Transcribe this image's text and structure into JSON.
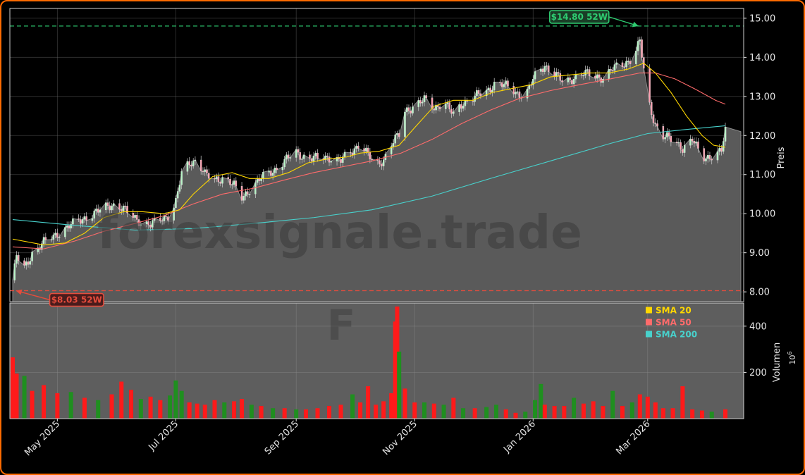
{
  "chart_data": {
    "type": "candlestick",
    "watermark": "forexsignale.trade",
    "ticker_watermark": "F",
    "price_axis": {
      "label": "Preis",
      "ylim": [
        7.75,
        15.25
      ],
      "ticks": [
        8.0,
        9.0,
        10.0,
        11.0,
        12.0,
        13.0,
        14.0,
        15.0
      ],
      "tick_labels": [
        "8.00",
        "9.00",
        "10.00",
        "11.00",
        "12.00",
        "13.00",
        "14.00",
        "15.00"
      ]
    },
    "volume_axis": {
      "label": "Volumen",
      "multiplier": "10^6",
      "ylim": [
        0,
        500
      ],
      "ticks": [
        200,
        400
      ],
      "tick_labels": [
        "200",
        "400"
      ]
    },
    "x_axis": {
      "start": "2025-04-08",
      "end": "2026-04-10",
      "ticks": [
        "2025-05-01",
        "2025-07-01",
        "2025-09-01",
        "2025-11-01",
        "2026-01-01",
        "2026-03-01"
      ],
      "tick_labels": [
        "May 2025",
        "Jul 2025",
        "Sep 2025",
        "Nov 2025",
        "Jan 2026",
        "Mar 2026"
      ]
    },
    "high_52w": {
      "date": "2026-02-25",
      "value": 14.8,
      "label": "$14.80 52W",
      "color": "#2ecc71"
    },
    "low_52w": {
      "date": "2025-04-09",
      "value": 8.03,
      "label": "$8.03 52W",
      "color": "#e74c3c"
    },
    "legend": [
      {
        "name": "SMA 20",
        "color": "#ffd700"
      },
      {
        "name": "SMA 50",
        "color": "#ff6b6b"
      },
      {
        "name": "SMA 200",
        "color": "#48d1cc"
      }
    ],
    "close_series": [
      [
        "2025-04-08",
        8.3
      ],
      [
        "2025-04-10",
        8.9
      ],
      [
        "2025-04-14",
        8.6
      ],
      [
        "2025-04-18",
        9.0
      ],
      [
        "2025-04-24",
        9.25
      ],
      [
        "2025-05-01",
        9.5
      ],
      [
        "2025-05-08",
        9.7
      ],
      [
        "2025-05-15",
        9.9
      ],
      [
        "2025-05-22",
        10.05
      ],
      [
        "2025-05-29",
        10.25
      ],
      [
        "2025-06-03",
        10.15
      ],
      [
        "2025-06-08",
        9.95
      ],
      [
        "2025-06-13",
        9.8
      ],
      [
        "2025-06-18",
        9.7
      ],
      [
        "2025-06-23",
        9.85
      ],
      [
        "2025-06-28",
        10.0
      ],
      [
        "2025-07-01",
        10.3
      ],
      [
        "2025-07-04",
        11.0
      ],
      [
        "2025-07-08",
        11.3
      ],
      [
        "2025-07-12",
        11.4
      ],
      [
        "2025-07-16",
        11.0
      ],
      [
        "2025-07-21",
        10.85
      ],
      [
        "2025-07-26",
        10.95
      ],
      [
        "2025-07-31",
        10.7
      ],
      [
        "2025-08-04",
        10.4
      ],
      [
        "2025-08-09",
        10.7
      ],
      [
        "2025-08-14",
        10.9
      ],
      [
        "2025-08-20",
        11.1
      ],
      [
        "2025-08-26",
        11.35
      ],
      [
        "2025-09-01",
        11.55
      ],
      [
        "2025-09-06",
        11.45
      ],
      [
        "2025-09-12",
        11.4
      ],
      [
        "2025-09-18",
        11.45
      ],
      [
        "2025-09-24",
        11.35
      ],
      [
        "2025-09-30",
        11.6
      ],
      [
        "2025-10-04",
        11.85
      ],
      [
        "2025-10-08",
        11.5
      ],
      [
        "2025-10-12",
        11.2
      ],
      [
        "2025-10-16",
        11.4
      ],
      [
        "2025-10-20",
        11.8
      ],
      [
        "2025-10-24",
        12.0
      ],
      [
        "2025-10-27",
        12.6
      ],
      [
        "2025-11-01",
        12.8
      ],
      [
        "2025-11-06",
        12.9
      ],
      [
        "2025-11-11",
        12.7
      ],
      [
        "2025-11-16",
        12.9
      ],
      [
        "2025-11-21",
        12.5
      ],
      [
        "2025-11-26",
        12.85
      ],
      [
        "2025-12-02",
        13.0
      ],
      [
        "2025-12-08",
        13.1
      ],
      [
        "2025-12-13",
        13.4
      ],
      [
        "2025-12-18",
        13.25
      ],
      [
        "2025-12-23",
        13.1
      ],
      [
        "2025-12-28",
        13.05
      ],
      [
        "2026-01-02",
        13.5
      ],
      [
        "2026-01-07",
        13.8
      ],
      [
        "2026-01-12",
        13.6
      ],
      [
        "2026-01-17",
        13.3
      ],
      [
        "2026-01-22",
        13.5
      ],
      [
        "2026-01-27",
        13.6
      ],
      [
        "2026-02-01",
        13.5
      ],
      [
        "2026-02-06",
        13.5
      ],
      [
        "2026-02-11",
        13.7
      ],
      [
        "2026-02-16",
        13.8
      ],
      [
        "2026-02-21",
        14.0
      ],
      [
        "2026-02-25",
        14.4
      ],
      [
        "2026-03-01",
        12.9
      ],
      [
        "2026-03-05",
        12.3
      ],
      [
        "2026-03-09",
        12.0
      ],
      [
        "2026-03-14",
        11.85
      ],
      [
        "2026-03-19",
        11.7
      ],
      [
        "2026-03-24",
        11.9
      ],
      [
        "2026-03-29",
        11.4
      ],
      [
        "2026-04-03",
        11.5
      ],
      [
        "2026-04-08",
        11.6
      ],
      [
        "2026-04-10",
        12.1
      ]
    ],
    "sma20_series": [
      [
        "2025-04-08",
        9.35
      ],
      [
        "2025-04-24",
        9.2
      ],
      [
        "2025-05-05",
        9.25
      ],
      [
        "2025-05-15",
        9.5
      ],
      [
        "2025-05-25",
        9.9
      ],
      [
        "2025-06-04",
        10.05
      ],
      [
        "2025-06-14",
        10.05
      ],
      [
        "2025-06-25",
        10.0
      ],
      [
        "2025-07-03",
        10.1
      ],
      [
        "2025-07-10",
        10.5
      ],
      [
        "2025-07-20",
        10.95
      ],
      [
        "2025-07-30",
        11.05
      ],
      [
        "2025-08-08",
        10.9
      ],
      [
        "2025-08-18",
        10.9
      ],
      [
        "2025-08-28",
        11.05
      ],
      [
        "2025-09-07",
        11.3
      ],
      [
        "2025-09-17",
        11.4
      ],
      [
        "2025-09-27",
        11.45
      ],
      [
        "2025-10-04",
        11.55
      ],
      [
        "2025-10-14",
        11.6
      ],
      [
        "2025-10-24",
        11.75
      ],
      [
        "2025-11-01",
        12.2
      ],
      [
        "2025-11-11",
        12.75
      ],
      [
        "2025-11-21",
        12.9
      ],
      [
        "2025-12-01",
        12.9
      ],
      [
        "2025-12-11",
        13.1
      ],
      [
        "2025-12-21",
        13.2
      ],
      [
        "2025-12-31",
        13.3
      ],
      [
        "2026-01-10",
        13.5
      ],
      [
        "2026-01-20",
        13.55
      ],
      [
        "2026-01-30",
        13.6
      ],
      [
        "2026-02-09",
        13.6
      ],
      [
        "2026-02-19",
        13.7
      ],
      [
        "2026-02-27",
        13.85
      ],
      [
        "2026-03-05",
        13.6
      ],
      [
        "2026-03-13",
        13.1
      ],
      [
        "2026-03-21",
        12.5
      ],
      [
        "2026-03-29",
        12.0
      ],
      [
        "2026-04-04",
        11.75
      ],
      [
        "2026-04-10",
        11.7
      ]
    ],
    "sma50_series": [
      [
        "2025-04-08",
        9.15
      ],
      [
        "2025-04-24",
        9.1
      ],
      [
        "2025-05-10",
        9.3
      ],
      [
        "2025-05-25",
        9.55
      ],
      [
        "2025-06-10",
        9.75
      ],
      [
        "2025-06-25",
        9.95
      ],
      [
        "2025-07-10",
        10.25
      ],
      [
        "2025-07-25",
        10.5
      ],
      [
        "2025-08-10",
        10.65
      ],
      [
        "2025-08-25",
        10.85
      ],
      [
        "2025-09-10",
        11.05
      ],
      [
        "2025-09-25",
        11.2
      ],
      [
        "2025-10-10",
        11.35
      ],
      [
        "2025-10-25",
        11.55
      ],
      [
        "2025-11-10",
        11.9
      ],
      [
        "2025-11-25",
        12.3
      ],
      [
        "2025-12-10",
        12.65
      ],
      [
        "2025-12-25",
        12.95
      ],
      [
        "2026-01-10",
        13.15
      ],
      [
        "2026-01-25",
        13.3
      ],
      [
        "2026-02-10",
        13.45
      ],
      [
        "2026-02-25",
        13.6
      ],
      [
        "2026-03-05",
        13.6
      ],
      [
        "2026-03-15",
        13.45
      ],
      [
        "2026-03-25",
        13.2
      ],
      [
        "2026-04-05",
        12.9
      ],
      [
        "2026-04-10",
        12.8
      ]
    ],
    "sma200_series": [
      [
        "2025-04-08",
        9.85
      ],
      [
        "2025-05-10",
        9.7
      ],
      [
        "2025-06-10",
        9.58
      ],
      [
        "2025-07-10",
        9.62
      ],
      [
        "2025-08-10",
        9.75
      ],
      [
        "2025-09-10",
        9.9
      ],
      [
        "2025-10-10",
        10.1
      ],
      [
        "2025-11-10",
        10.45
      ],
      [
        "2025-12-10",
        10.9
      ],
      [
        "2026-01-10",
        11.35
      ],
      [
        "2026-02-10",
        11.8
      ],
      [
        "2026-03-01",
        12.05
      ],
      [
        "2026-03-20",
        12.15
      ],
      [
        "2026-04-10",
        12.25
      ]
    ],
    "volume_series": [
      [
        "2025-04-08",
        265,
        "down"
      ],
      [
        "2025-04-10",
        195,
        "down"
      ],
      [
        "2025-04-14",
        185,
        "up"
      ],
      [
        "2025-04-18",
        120,
        "down"
      ],
      [
        "2025-04-24",
        145,
        "down"
      ],
      [
        "2025-05-01",
        110,
        "down"
      ],
      [
        "2025-05-08",
        115,
        "up"
      ],
      [
        "2025-05-15",
        90,
        "down"
      ],
      [
        "2025-05-22",
        80,
        "up"
      ],
      [
        "2025-05-29",
        105,
        "down"
      ],
      [
        "2025-06-03",
        160,
        "down"
      ],
      [
        "2025-06-08",
        125,
        "down"
      ],
      [
        "2025-06-13",
        85,
        "up"
      ],
      [
        "2025-06-18",
        95,
        "down"
      ],
      [
        "2025-06-23",
        80,
        "down"
      ],
      [
        "2025-06-28",
        100,
        "up"
      ],
      [
        "2025-07-01",
        165,
        "up"
      ],
      [
        "2025-07-04",
        120,
        "up"
      ],
      [
        "2025-07-08",
        70,
        "down"
      ],
      [
        "2025-07-12",
        65,
        "down"
      ],
      [
        "2025-07-16",
        60,
        "down"
      ],
      [
        "2025-07-21",
        80,
        "down"
      ],
      [
        "2025-07-26",
        70,
        "up"
      ],
      [
        "2025-07-31",
        75,
        "down"
      ],
      [
        "2025-08-04",
        85,
        "down"
      ],
      [
        "2025-08-09",
        60,
        "up"
      ],
      [
        "2025-08-14",
        55,
        "down"
      ],
      [
        "2025-08-20",
        45,
        "up"
      ],
      [
        "2025-08-26",
        45,
        "down"
      ],
      [
        "2025-09-01",
        40,
        "up"
      ],
      [
        "2025-09-06",
        40,
        "down"
      ],
      [
        "2025-09-12",
        45,
        "down"
      ],
      [
        "2025-09-18",
        55,
        "down"
      ],
      [
        "2025-09-24",
        60,
        "down"
      ],
      [
        "2025-09-30",
        105,
        "up"
      ],
      [
        "2025-10-04",
        70,
        "down"
      ],
      [
        "2025-10-08",
        140,
        "down"
      ],
      [
        "2025-10-12",
        60,
        "down"
      ],
      [
        "2025-10-16",
        75,
        "down"
      ],
      [
        "2025-10-20",
        110,
        "down"
      ],
      [
        "2025-10-22",
        420,
        "down"
      ],
      [
        "2025-10-23",
        485,
        "down"
      ],
      [
        "2025-10-24",
        290,
        "up"
      ],
      [
        "2025-10-27",
        130,
        "down"
      ],
      [
        "2025-11-01",
        70,
        "down"
      ],
      [
        "2025-11-06",
        70,
        "up"
      ],
      [
        "2025-11-11",
        65,
        "down"
      ],
      [
        "2025-11-16",
        60,
        "up"
      ],
      [
        "2025-11-21",
        90,
        "down"
      ],
      [
        "2025-11-26",
        45,
        "up"
      ],
      [
        "2025-12-02",
        45,
        "down"
      ],
      [
        "2025-12-08",
        50,
        "up"
      ],
      [
        "2025-12-13",
        60,
        "up"
      ],
      [
        "2025-12-18",
        40,
        "down"
      ],
      [
        "2025-12-23",
        25,
        "down"
      ],
      [
        "2025-12-28",
        30,
        "up"
      ],
      [
        "2026-01-02",
        80,
        "up"
      ],
      [
        "2026-01-05",
        150,
        "up"
      ],
      [
        "2026-01-07",
        60,
        "down"
      ],
      [
        "2026-01-12",
        55,
        "down"
      ],
      [
        "2026-01-17",
        55,
        "down"
      ],
      [
        "2026-01-22",
        90,
        "up"
      ],
      [
        "2026-01-27",
        65,
        "down"
      ],
      [
        "2026-02-01",
        75,
        "down"
      ],
      [
        "2026-02-06",
        55,
        "down"
      ],
      [
        "2026-02-11",
        120,
        "up"
      ],
      [
        "2026-02-16",
        55,
        "down"
      ],
      [
        "2026-02-21",
        70,
        "up"
      ],
      [
        "2026-02-25",
        105,
        "down"
      ],
      [
        "2026-03-01",
        95,
        "down"
      ],
      [
        "2026-03-05",
        70,
        "down"
      ],
      [
        "2026-03-09",
        45,
        "down"
      ],
      [
        "2026-03-14",
        45,
        "down"
      ],
      [
        "2026-03-19",
        140,
        "down"
      ],
      [
        "2026-03-24",
        40,
        "down"
      ],
      [
        "2026-03-29",
        35,
        "down"
      ],
      [
        "2026-04-03",
        30,
        "up"
      ],
      [
        "2026-04-10",
        40,
        "down"
      ]
    ]
  }
}
